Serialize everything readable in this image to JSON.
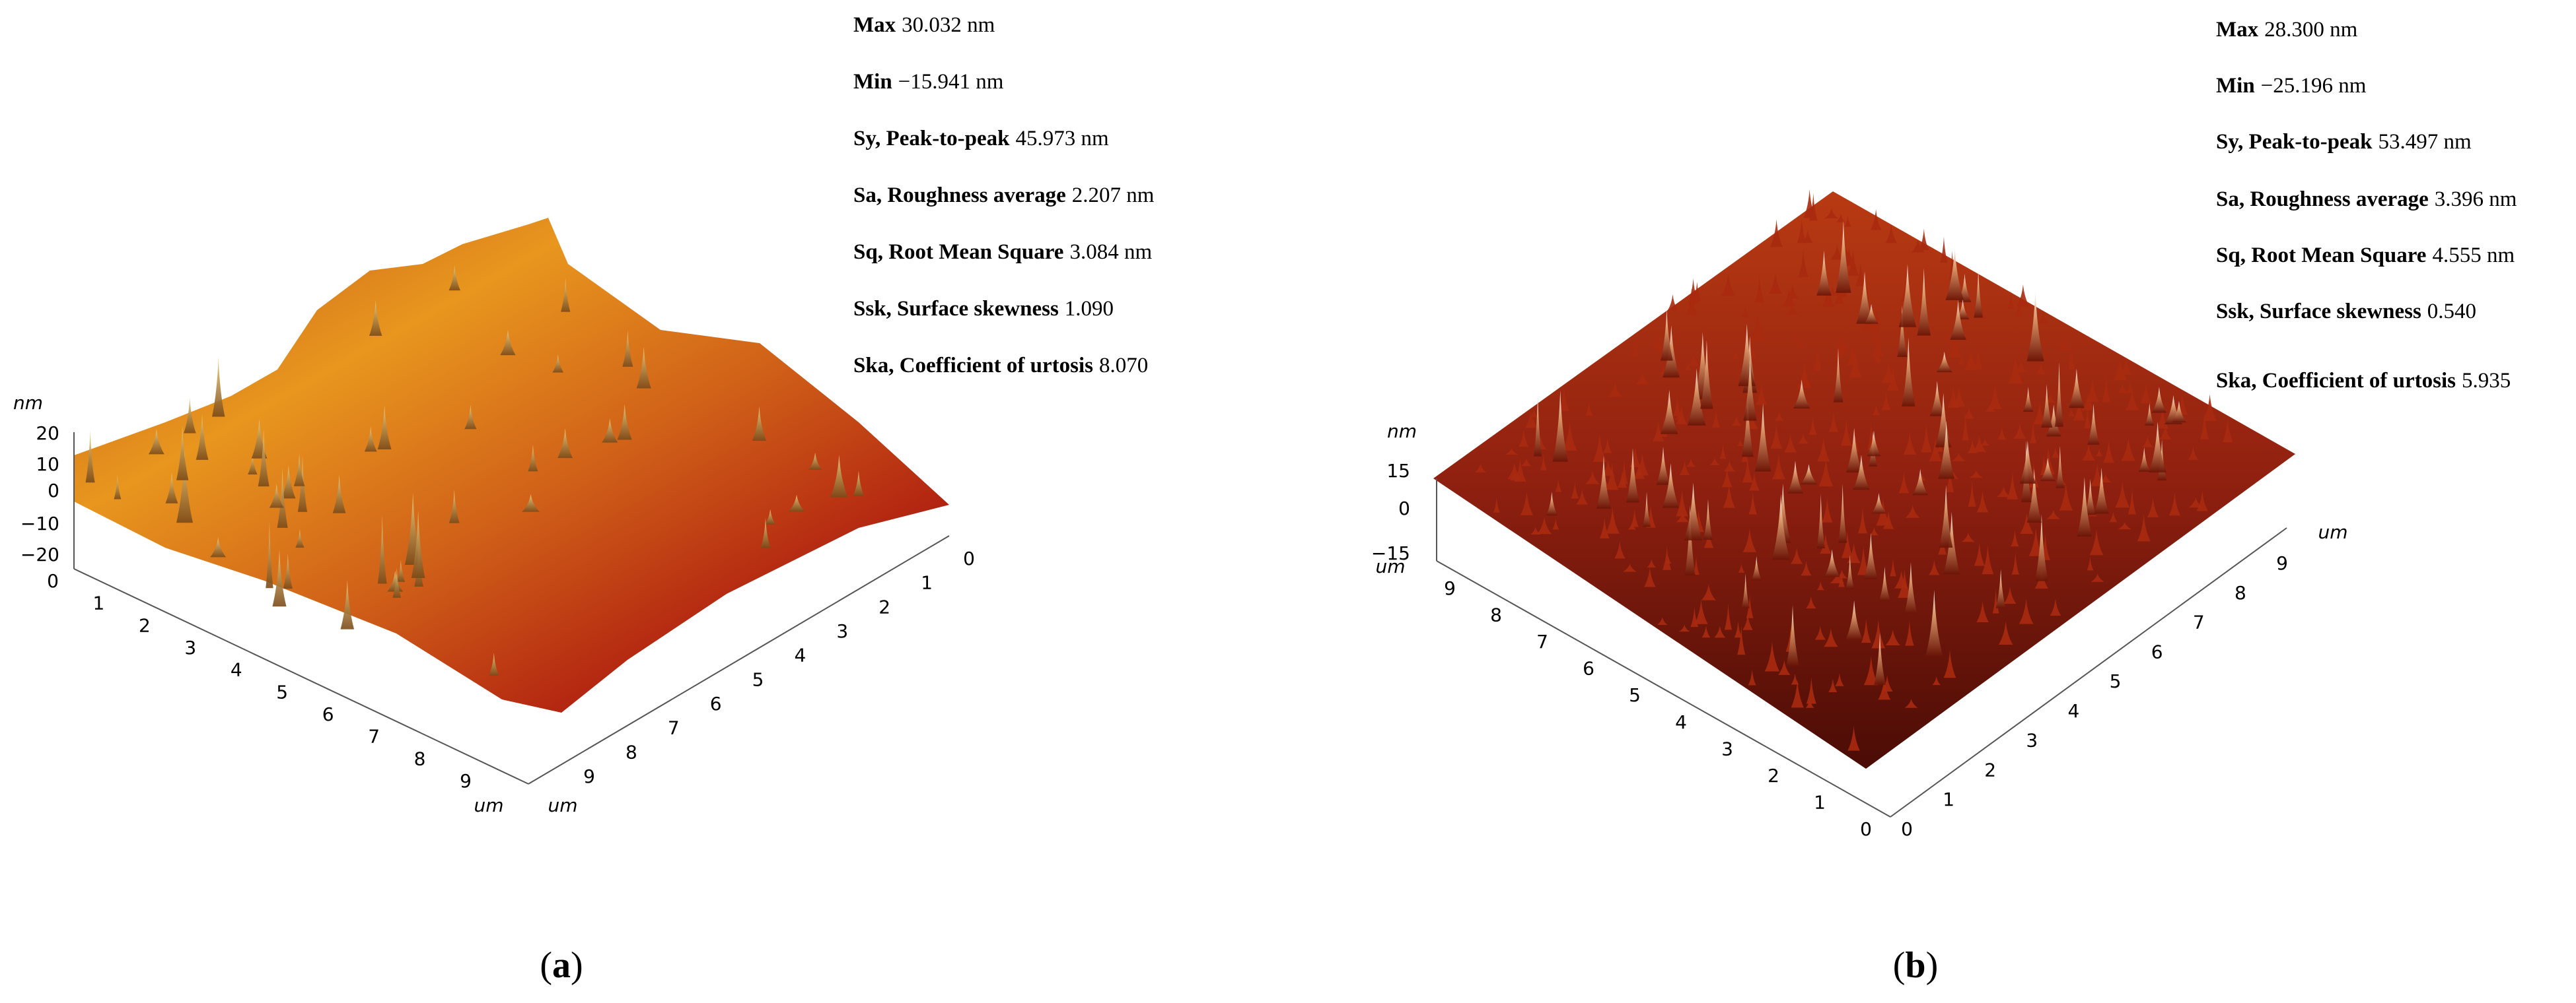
{
  "panels": [
    {
      "stats": [
        {
          "label": "Max",
          "value": "30.032 nm"
        },
        {
          "label": "Min",
          "value": "−15.941 nm"
        },
        {
          "label": "Sy, Peak-to-peak",
          "value": "45.973 nm"
        },
        {
          "label": "Sa, Roughness average",
          "value": "2.207 nm"
        },
        {
          "label": "Sq, Root Mean Square",
          "value": "3.084 nm"
        },
        {
          "label": "Ssk, Surface skewness",
          "value": "1.090"
        },
        {
          "label": "Ska, Coefficient of urtosis",
          "value": "8.070"
        }
      ],
      "z_unit": "nm",
      "z_ticks": [
        "20",
        "10",
        "0",
        "−10",
        "−20"
      ],
      "left_ticks": [
        "0",
        "1",
        "2",
        "3",
        "4",
        "5",
        "6",
        "7",
        "8",
        "9"
      ],
      "left_unit": "um",
      "right_ticks": [
        "0",
        "1",
        "2",
        "3",
        "4",
        "5",
        "6",
        "7",
        "8",
        "9"
      ],
      "right_unit": "um",
      "caption": [
        "(",
        "a",
        ")"
      ]
    },
    {
      "stats": [
        {
          "label": "Max",
          "value": "28.300 nm"
        },
        {
          "label": "Min",
          "value": "−25.196 nm"
        },
        {
          "label": "Sy, Peak-to-peak",
          "value": "53.497 nm"
        },
        {
          "label": "Sa, Roughness average",
          "value": "3.396 nm"
        },
        {
          "label": "Sq, Root Mean Square",
          "value": "4.555 nm"
        },
        {
          "label": "Ssk, Surface skewness",
          "value": "0.540"
        },
        {
          "label": "Ska, Coefficient of urtosis",
          "value": "5.935"
        }
      ],
      "z_unit": "nm",
      "z_ticks": [
        "15",
        "0",
        "−15"
      ],
      "left_ticks": [
        "0",
        "1",
        "2",
        "3",
        "4",
        "5",
        "6",
        "7",
        "8",
        "9"
      ],
      "left_unit": "um",
      "right_ticks": [
        "0",
        "1",
        "2",
        "3",
        "4",
        "5",
        "6",
        "7",
        "8",
        "9"
      ],
      "right_unit": "um",
      "caption": [
        "(",
        "b",
        ")"
      ]
    }
  ]
}
